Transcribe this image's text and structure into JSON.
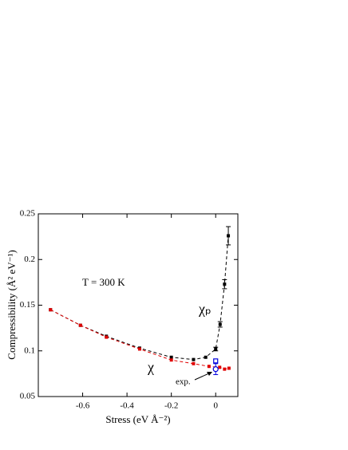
{
  "chart_data": {
    "type": "scatter",
    "xlabel": "Stress  (eV Å⁻²)",
    "ylabel": "Compressibility  (Å² eV⁻¹)",
    "annotations": [
      "T = 300 K",
      "exp."
    ],
    "xlim": [
      -0.8,
      0.1
    ],
    "xticks": [
      -0.6,
      -0.4,
      -0.2,
      0
    ],
    "ylim": [
      0.05,
      0.25
    ],
    "yticks": [
      0.05,
      0.1,
      0.15,
      0.2,
      0.25
    ],
    "series": [
      {
        "name": "χₚ",
        "color": "#000000",
        "x": [
          -0.745,
          -0.61,
          -0.493,
          -0.343,
          -0.2,
          -0.1,
          -0.045,
          0,
          0.02,
          0.04,
          0.057
        ],
        "values": [
          0.145,
          0.128,
          0.116,
          0.103,
          0.093,
          0.0905,
          0.093,
          0.102,
          0.129,
          0.173,
          0.226
        ],
        "errors": [
          null,
          null,
          null,
          null,
          null,
          null,
          null,
          0.002,
          0.003,
          0.005,
          0.01
        ]
      },
      {
        "name": "χ",
        "color": "#e00000",
        "x": [
          -0.745,
          -0.61,
          -0.493,
          -0.343,
          -0.2,
          -0.1,
          -0.03,
          0.018,
          0.04,
          0.06
        ],
        "values": [
          0.145,
          0.128,
          0.115,
          0.102,
          0.09,
          0.086,
          0.083,
          0.082,
          0.08,
          0.081
        ]
      }
    ],
    "experiment": {
      "color": "#0000dd",
      "x": 0,
      "circle": 0.08,
      "circle_error": 0.006,
      "square": 0.089
    }
  }
}
